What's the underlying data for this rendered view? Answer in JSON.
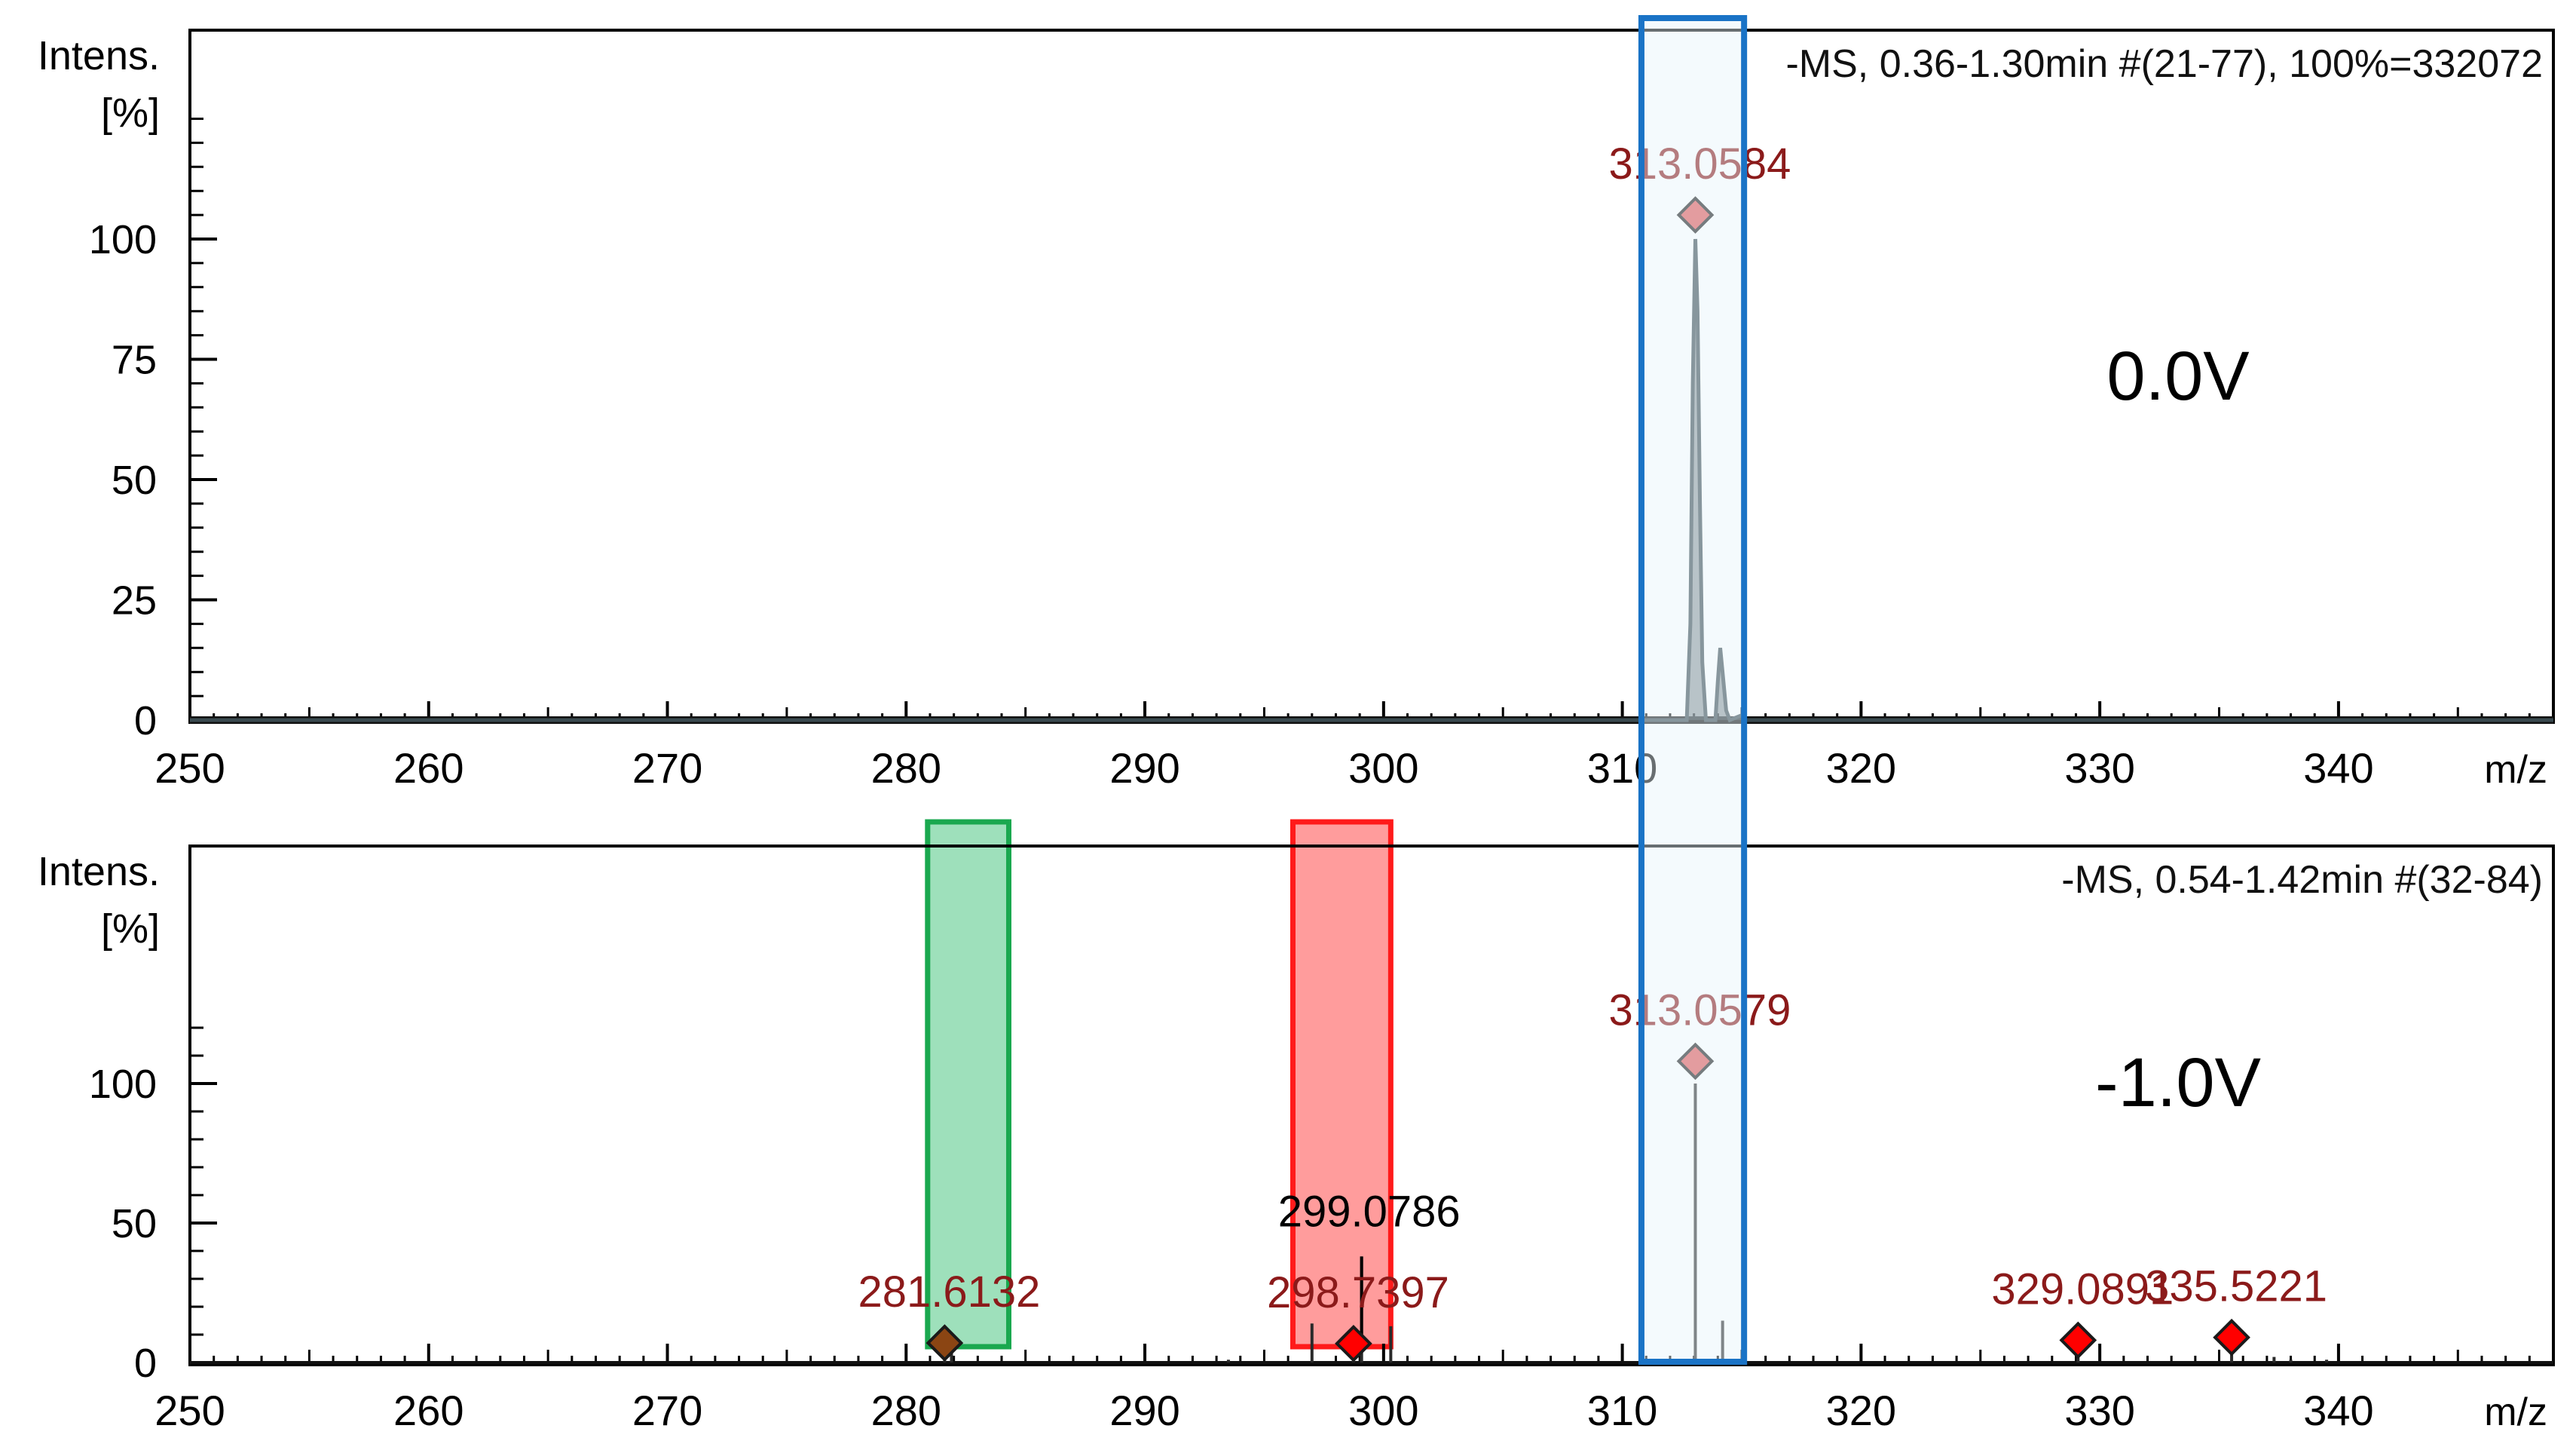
{
  "chart_data": [
    {
      "type": "line",
      "title": "",
      "ylabel": "Intens.",
      "yunit": "[%]",
      "xlabel": "m/z",
      "xlim": [
        250,
        349
      ],
      "ylim": [
        0,
        125
      ],
      "xticks": [
        250,
        260,
        270,
        280,
        290,
        300,
        310,
        320,
        330,
        340
      ],
      "yticks": [
        0,
        25,
        50,
        75,
        100
      ],
      "header": "-MS, 0.36-1.30min #(21-77), 100%=332072",
      "condition": "0.0V",
      "profile": [
        [
          250,
          0
        ],
        [
          312.7,
          0
        ],
        [
          312.85,
          20
        ],
        [
          312.95,
          70
        ],
        [
          313.0584,
          100
        ],
        [
          313.15,
          85
        ],
        [
          313.25,
          45
        ],
        [
          313.35,
          12
        ],
        [
          313.5,
          0
        ],
        [
          313.9,
          0
        ],
        [
          314.0,
          8
        ],
        [
          314.1,
          15
        ],
        [
          314.2,
          10
        ],
        [
          314.35,
          2
        ],
        [
          314.5,
          0
        ],
        [
          315.0,
          1
        ],
        [
          315.2,
          0
        ],
        [
          349,
          0
        ]
      ],
      "peak_labels": [
        {
          "name": "313.0584",
          "x": 313.0584,
          "y": 100,
          "color": "#8b1a1a"
        }
      ],
      "highlights": [
        {
          "name": "blue-box",
          "x": [
            310.8,
            315.1
          ],
          "color": "#1a73c6",
          "fill": "#e6f3fb"
        }
      ]
    },
    {
      "type": "bar",
      "title": "",
      "ylabel": "Intens.",
      "yunit": "[%]",
      "xlabel": "m/z",
      "xlim": [
        250,
        349
      ],
      "ylim": [
        0,
        125
      ],
      "xticks": [
        250,
        260,
        270,
        280,
        290,
        300,
        310,
        320,
        330,
        340
      ],
      "yticks": [
        0,
        50,
        100
      ],
      "header": "-MS, 0.54-1.42min #(32-84)",
      "condition": "-1.0V",
      "sticks": [
        [
          281.6132,
          1
        ],
        [
          281.9,
          6
        ],
        [
          293.5,
          1
        ],
        [
          297.0,
          14
        ],
        [
          298.7397,
          0.8
        ],
        [
          299.0786,
          38
        ],
        [
          300.3,
          13
        ],
        [
          313.0579,
          100
        ],
        [
          314.2,
          15
        ],
        [
          329.0891,
          2
        ],
        [
          335.5221,
          3
        ],
        [
          337.3,
          2
        ],
        [
          338.0,
          1
        ],
        [
          339.5,
          1
        ]
      ],
      "peak_labels": [
        {
          "name": "281.6132",
          "x": 281.6132,
          "y": 1,
          "color": "#8b1a1a",
          "marker": "#8b4513"
        },
        {
          "name": "298.7397",
          "x": 298.7397,
          "y": 0.8,
          "color": "#8b1a1a",
          "marker": "#ff0000"
        },
        {
          "name": "313.0579",
          "x": 313.0579,
          "y": 100,
          "color": "#8b1a1a",
          "marker": "#e05555"
        },
        {
          "name": "329.0891",
          "x": 329.0891,
          "y": 2,
          "color": "#8b1a1a",
          "marker": "#ff0000"
        },
        {
          "name": "335.5221",
          "x": 335.5221,
          "y": 3,
          "color": "#8b1a1a",
          "marker": "#ff0000"
        }
      ],
      "black_label": {
        "name": "299.0786",
        "x": 299.0786,
        "y": 38
      },
      "highlights": [
        {
          "name": "green-box",
          "x": [
            280.9,
            284.3
          ],
          "color": "#1aa84f",
          "fill": "#9ee0bb"
        },
        {
          "name": "red-box",
          "x": [
            296.2,
            300.3
          ],
          "color": "#ff1a1a",
          "fill": "#ff9c9c"
        },
        {
          "name": "blue-box",
          "x": [
            310.8,
            315.1
          ],
          "color": "#1a73c6",
          "fill": "#e6f3fb"
        }
      ]
    }
  ]
}
